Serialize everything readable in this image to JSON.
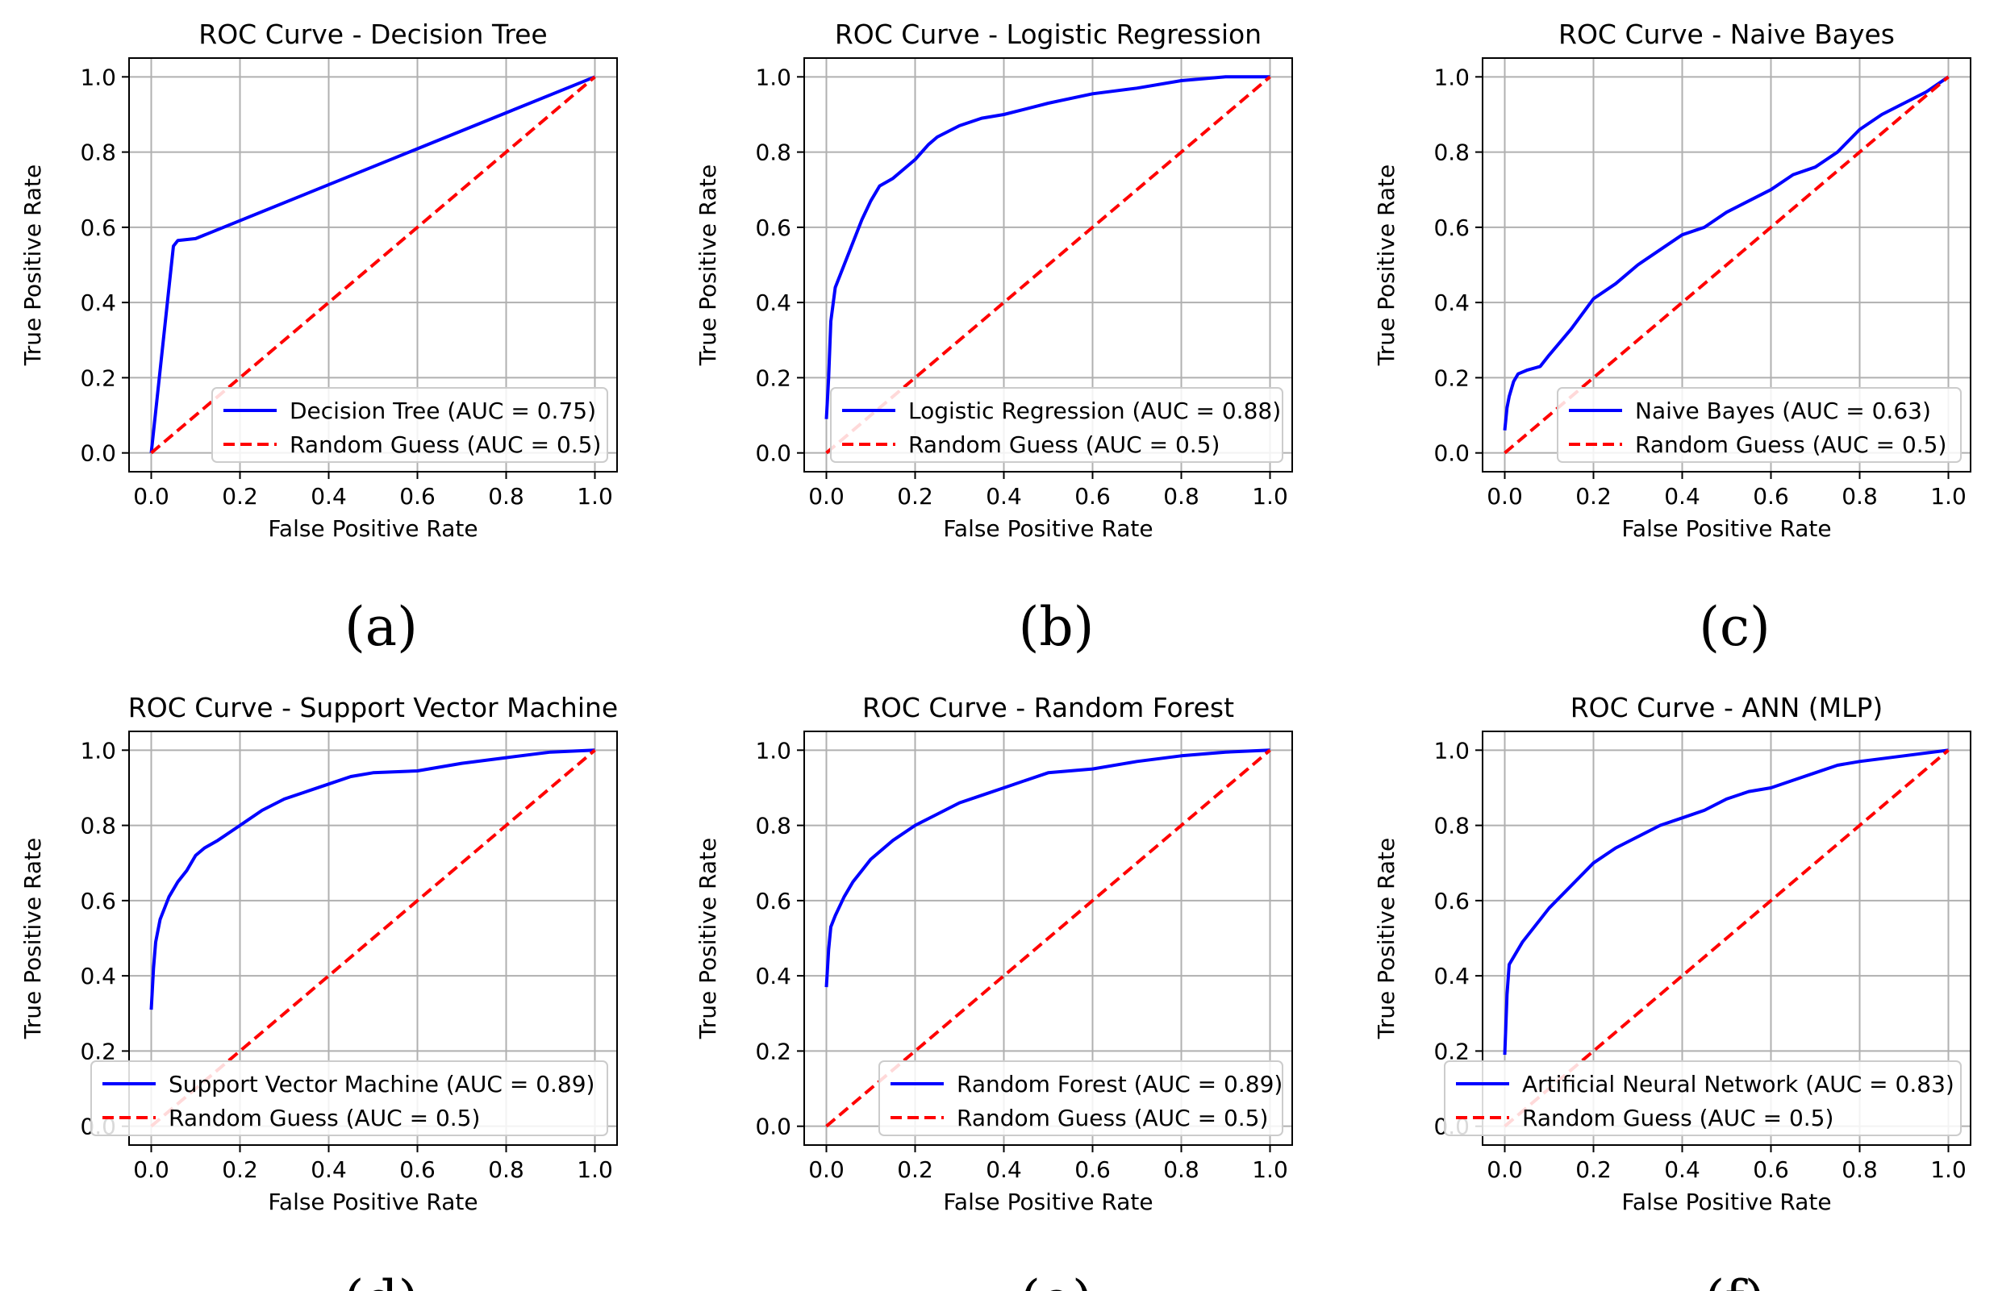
{
  "colors": {
    "model": "#0000ff",
    "random": "#ff0000",
    "grid": "#b0b0b0"
  },
  "chart_data": [
    {
      "type": "line",
      "panel_label": "(a)",
      "title": "ROC Curve - Decision Tree",
      "xlabel": "False Positive Rate",
      "ylabel": "True Positive Rate",
      "xlim": [
        0,
        1
      ],
      "ylim": [
        0,
        1
      ],
      "xticks": [
        "0.0",
        "0.2",
        "0.4",
        "0.6",
        "0.8",
        "1.0"
      ],
      "yticks": [
        "0.0",
        "0.2",
        "0.4",
        "0.6",
        "0.8",
        "1.0"
      ],
      "grid": true,
      "legend_position": "lower-right",
      "series": [
        {
          "name": "Decision Tree (AUC = 0.75)",
          "style": "solid",
          "x": [
            0,
            0.05,
            0.06,
            0.1,
            1.0
          ],
          "y": [
            0,
            0.55,
            0.565,
            0.57,
            1.0
          ]
        },
        {
          "name": "Random Guess (AUC = 0.5)",
          "style": "dashed",
          "x": [
            0,
            1
          ],
          "y": [
            0,
            1
          ]
        }
      ]
    },
    {
      "type": "line",
      "panel_label": "(b)",
      "title": "ROC Curve - Logistic Regression",
      "xlabel": "False Positive Rate",
      "ylabel": "True Positive Rate",
      "xlim": [
        0,
        1
      ],
      "ylim": [
        0,
        1
      ],
      "xticks": [
        "0.0",
        "0.2",
        "0.4",
        "0.6",
        "0.8",
        "1.0"
      ],
      "yticks": [
        "0.0",
        "0.2",
        "0.4",
        "0.6",
        "0.8",
        "1.0"
      ],
      "grid": true,
      "legend_position": "lower-right",
      "series": [
        {
          "name": "Logistic Regression (AUC = 0.88)",
          "style": "solid",
          "x": [
            0,
            0.005,
            0.01,
            0.02,
            0.04,
            0.06,
            0.08,
            0.1,
            0.12,
            0.15,
            0.2,
            0.23,
            0.25,
            0.3,
            0.35,
            0.4,
            0.5,
            0.6,
            0.7,
            0.8,
            0.9,
            1.0
          ],
          "y": [
            0.09,
            0.2,
            0.35,
            0.44,
            0.5,
            0.56,
            0.62,
            0.67,
            0.71,
            0.73,
            0.78,
            0.82,
            0.84,
            0.87,
            0.89,
            0.9,
            0.93,
            0.955,
            0.97,
            0.99,
            1.0,
            1.0
          ]
        },
        {
          "name": "Random Guess (AUC = 0.5)",
          "style": "dashed",
          "x": [
            0,
            1
          ],
          "y": [
            0,
            1
          ]
        }
      ]
    },
    {
      "type": "line",
      "panel_label": "(c)",
      "title": "ROC Curve - Naive Bayes",
      "xlabel": "False Positive Rate",
      "ylabel": "True Positive Rate",
      "xlim": [
        0,
        1
      ],
      "ylim": [
        0,
        1
      ],
      "xticks": [
        "0.0",
        "0.2",
        "0.4",
        "0.6",
        "0.8",
        "1.0"
      ],
      "yticks": [
        "0.0",
        "0.2",
        "0.4",
        "0.6",
        "0.8",
        "1.0"
      ],
      "grid": true,
      "legend_position": "lower-right",
      "series": [
        {
          "name": "Naive Bayes (AUC = 0.63)",
          "style": "solid",
          "x": [
            0,
            0.005,
            0.01,
            0.02,
            0.03,
            0.05,
            0.08,
            0.1,
            0.15,
            0.2,
            0.25,
            0.3,
            0.35,
            0.4,
            0.45,
            0.5,
            0.55,
            0.6,
            0.65,
            0.7,
            0.75,
            0.8,
            0.85,
            0.9,
            0.95,
            1.0
          ],
          "y": [
            0.06,
            0.12,
            0.15,
            0.19,
            0.21,
            0.22,
            0.23,
            0.26,
            0.33,
            0.41,
            0.45,
            0.5,
            0.54,
            0.58,
            0.6,
            0.64,
            0.67,
            0.7,
            0.74,
            0.76,
            0.8,
            0.86,
            0.9,
            0.93,
            0.96,
            1.0
          ]
        },
        {
          "name": "Random Guess (AUC = 0.5)",
          "style": "dashed",
          "x": [
            0,
            1
          ],
          "y": [
            0,
            1
          ]
        }
      ]
    },
    {
      "type": "line",
      "panel_label": "(d)",
      "title": "ROC Curve - Support Vector Machine",
      "xlabel": "False Positive Rate",
      "ylabel": "True Positive Rate",
      "xlim": [
        0,
        1
      ],
      "ylim": [
        0,
        1
      ],
      "xticks": [
        "0.0",
        "0.2",
        "0.4",
        "0.6",
        "0.8",
        "1.0"
      ],
      "yticks": [
        "0.0",
        "0.2",
        "0.4",
        "0.6",
        "0.8",
        "1.0"
      ],
      "grid": true,
      "legend_position": "lower-right",
      "series": [
        {
          "name": "Support Vector Machine (AUC = 0.89)",
          "style": "solid",
          "x": [
            0,
            0.005,
            0.01,
            0.02,
            0.04,
            0.06,
            0.08,
            0.1,
            0.12,
            0.15,
            0.2,
            0.25,
            0.3,
            0.35,
            0.4,
            0.45,
            0.5,
            0.6,
            0.7,
            0.8,
            0.9,
            1.0
          ],
          "y": [
            0.31,
            0.42,
            0.49,
            0.55,
            0.61,
            0.65,
            0.68,
            0.72,
            0.74,
            0.76,
            0.8,
            0.84,
            0.87,
            0.89,
            0.91,
            0.93,
            0.94,
            0.945,
            0.965,
            0.98,
            0.995,
            1.0
          ]
        },
        {
          "name": "Random Guess (AUC = 0.5)",
          "style": "dashed",
          "x": [
            0,
            1
          ],
          "y": [
            0,
            1
          ]
        }
      ]
    },
    {
      "type": "line",
      "panel_label": "(e)",
      "title": "ROC Curve - Random Forest",
      "xlabel": "False Positive Rate",
      "ylabel": "True Positive Rate",
      "xlim": [
        0,
        1
      ],
      "ylim": [
        0,
        1
      ],
      "xticks": [
        "0.0",
        "0.2",
        "0.4",
        "0.6",
        "0.8",
        "1.0"
      ],
      "yticks": [
        "0.0",
        "0.2",
        "0.4",
        "0.6",
        "0.8",
        "1.0"
      ],
      "grid": true,
      "legend_position": "lower-right",
      "series": [
        {
          "name": "Random Forest (AUC = 0.89)",
          "style": "solid",
          "x": [
            0,
            0.005,
            0.01,
            0.02,
            0.04,
            0.06,
            0.08,
            0.1,
            0.15,
            0.2,
            0.25,
            0.3,
            0.35,
            0.4,
            0.45,
            0.5,
            0.6,
            0.7,
            0.8,
            0.9,
            1.0
          ],
          "y": [
            0.37,
            0.47,
            0.53,
            0.56,
            0.61,
            0.65,
            0.68,
            0.71,
            0.76,
            0.8,
            0.83,
            0.86,
            0.88,
            0.9,
            0.92,
            0.94,
            0.95,
            0.97,
            0.985,
            0.995,
            1.0
          ]
        },
        {
          "name": "Random Guess (AUC = 0.5)",
          "style": "dashed",
          "x": [
            0,
            1
          ],
          "y": [
            0,
            1
          ]
        }
      ]
    },
    {
      "type": "line",
      "panel_label": "(f)",
      "title": "ROC Curve - ANN (MLP)",
      "xlabel": "False Positive Rate",
      "ylabel": "True Positive Rate",
      "xlim": [
        0,
        1
      ],
      "ylim": [
        0,
        1
      ],
      "xticks": [
        "0.0",
        "0.2",
        "0.4",
        "0.6",
        "0.8",
        "1.0"
      ],
      "yticks": [
        "0.0",
        "0.2",
        "0.4",
        "0.6",
        "0.8",
        "1.0"
      ],
      "grid": true,
      "legend_position": "lower-right",
      "series": [
        {
          "name": "Artificial Neural Network (AUC = 0.83)",
          "style": "solid",
          "x": [
            0,
            0.005,
            0.01,
            0.02,
            0.04,
            0.06,
            0.1,
            0.15,
            0.2,
            0.25,
            0.3,
            0.35,
            0.4,
            0.45,
            0.5,
            0.55,
            0.6,
            0.65,
            0.7,
            0.75,
            0.8,
            0.9,
            1.0
          ],
          "y": [
            0.19,
            0.35,
            0.43,
            0.45,
            0.49,
            0.52,
            0.58,
            0.64,
            0.7,
            0.74,
            0.77,
            0.8,
            0.82,
            0.84,
            0.87,
            0.89,
            0.9,
            0.92,
            0.94,
            0.96,
            0.97,
            0.985,
            1.0
          ]
        },
        {
          "name": "Random Guess (AUC = 0.5)",
          "style": "dashed",
          "x": [
            0,
            1
          ],
          "y": [
            0,
            1
          ]
        }
      ]
    }
  ]
}
